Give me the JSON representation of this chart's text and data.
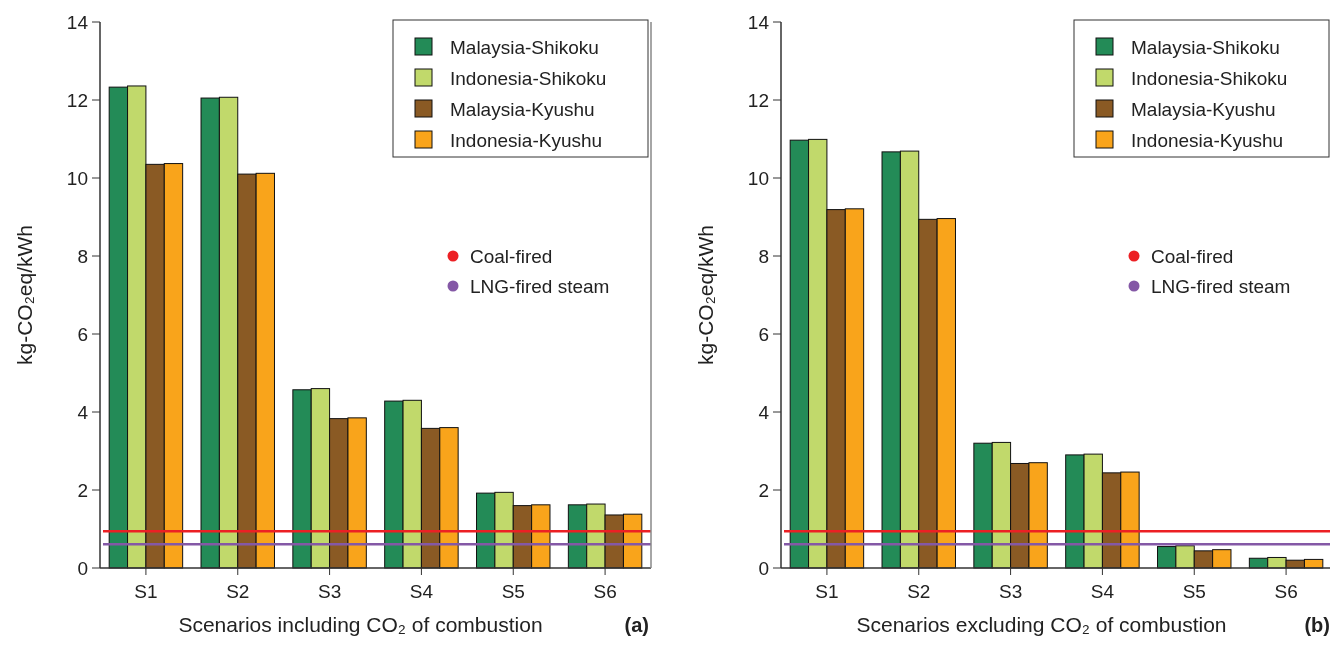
{
  "chart_data": [
    {
      "type": "bar",
      "categories": [
        "S1",
        "S2",
        "S3",
        "S4",
        "S5",
        "S6"
      ],
      "series": [
        {
          "name": "Malaysia-Shikoku",
          "color": "#238b57",
          "values": [
            12.33,
            12.05,
            4.57,
            4.28,
            1.92,
            1.62
          ]
        },
        {
          "name": "Indonesia-Shikoku",
          "color": "#c1d96b",
          "values": [
            12.36,
            12.07,
            4.6,
            4.3,
            1.94,
            1.64
          ]
        },
        {
          "name": "Malaysia-Kyushu",
          "color": "#8a5a24",
          "values": [
            10.35,
            10.1,
            3.83,
            3.58,
            1.6,
            1.36
          ]
        },
        {
          "name": "Indonesia-Kyushu",
          "color": "#f9a41b",
          "values": [
            10.37,
            10.12,
            3.85,
            3.6,
            1.62,
            1.38
          ]
        }
      ],
      "ref_lines": [
        {
          "axis": "y",
          "value": 0.94,
          "label": "Coal-fired",
          "color": "#ec2024"
        },
        {
          "axis": "y",
          "value": 0.61,
          "label": "LNG-fired steam",
          "color": "#8458a6"
        }
      ],
      "ylim": [
        0,
        14
      ],
      "yticks": [
        0,
        2,
        4,
        6,
        8,
        10,
        12,
        14
      ],
      "xlabel": "Scenarios including CO₂ of combustion",
      "ylabel": "kg-CO₂eq/kWh",
      "annotations": [
        "(a)"
      ],
      "legend": "top right",
      "grid": false
    },
    {
      "type": "bar",
      "categories": [
        "S1",
        "S2",
        "S3",
        "S4",
        "S5",
        "S6"
      ],
      "series": [
        {
          "name": "Malaysia-Shikoku",
          "color": "#238b57",
          "values": [
            10.97,
            10.67,
            3.2,
            2.9,
            0.55,
            0.25
          ]
        },
        {
          "name": "Indonesia-Shikoku",
          "color": "#c1d96b",
          "values": [
            10.99,
            10.69,
            3.22,
            2.92,
            0.57,
            0.27
          ]
        },
        {
          "name": "Malaysia-Kyushu",
          "color": "#8a5a24",
          "values": [
            9.19,
            8.94,
            2.68,
            2.44,
            0.44,
            0.2
          ]
        },
        {
          "name": "Indonesia-Kyushu",
          "color": "#f9a41b",
          "values": [
            9.21,
            8.96,
            2.7,
            2.46,
            0.47,
            0.22
          ]
        }
      ],
      "ref_lines": [
        {
          "axis": "y",
          "value": 0.94,
          "label": "Coal-fired",
          "color": "#ec2024"
        },
        {
          "axis": "y",
          "value": 0.61,
          "label": "LNG-fired steam",
          "color": "#8458a6"
        }
      ],
      "ylim": [
        0,
        14
      ],
      "yticks": [
        0,
        2,
        4,
        6,
        8,
        10,
        12,
        14
      ],
      "xlabel": "Scenarios excluding CO₂ of combustion",
      "ylabel": "kg-CO₂eq/kWh",
      "annotations": [
        "(b)"
      ],
      "legend": "top right",
      "grid": false
    }
  ]
}
